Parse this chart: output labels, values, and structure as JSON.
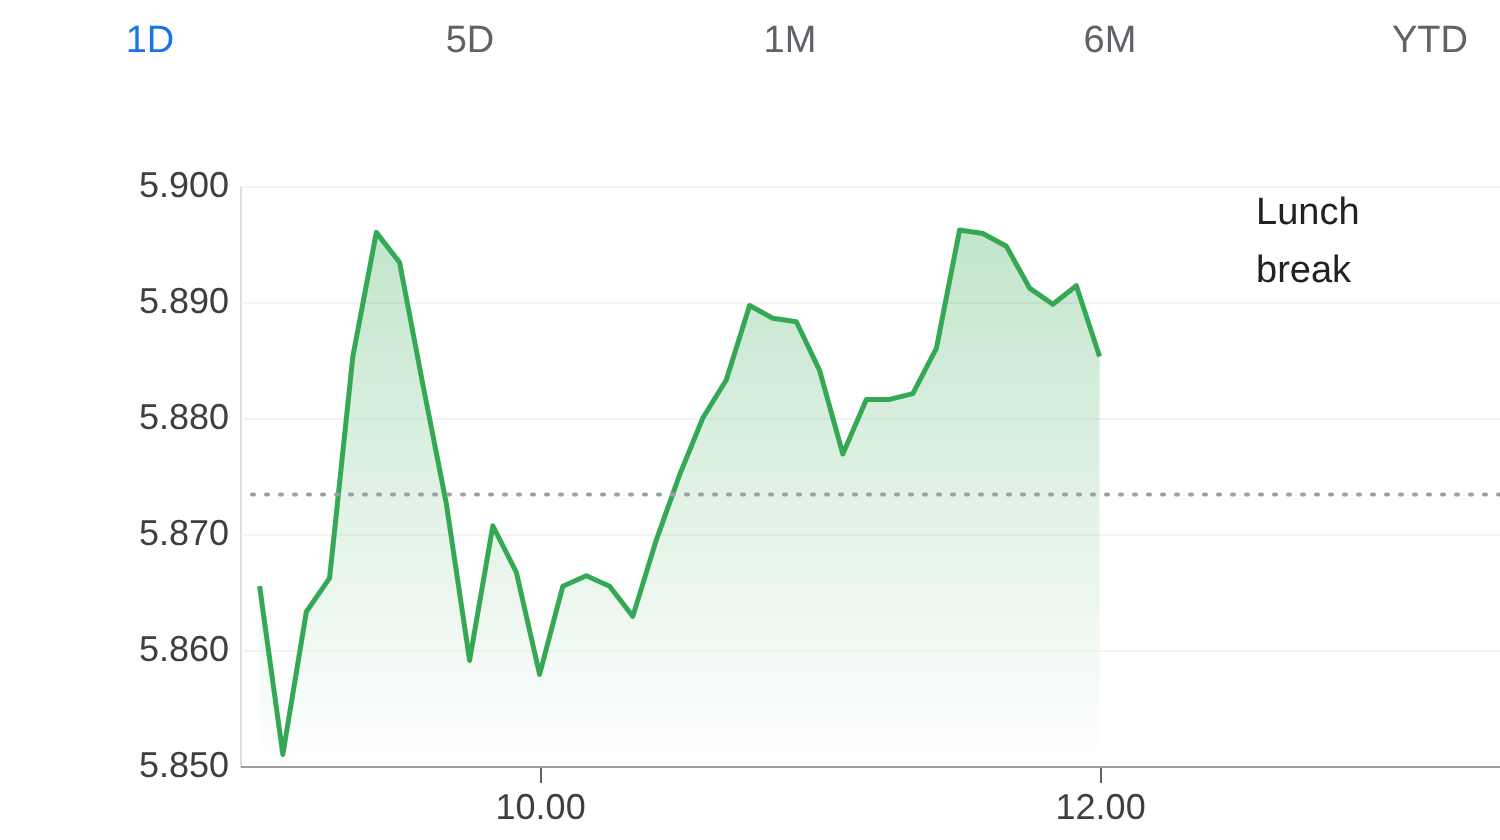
{
  "chart_data": {
    "type": "area",
    "x": [
      9.0,
      9.083,
      9.167,
      9.25,
      9.333,
      9.417,
      9.5,
      9.583,
      9.667,
      9.75,
      9.833,
      9.917,
      10.0,
      10.083,
      10.167,
      10.25,
      10.333,
      10.417,
      10.5,
      10.583,
      10.667,
      10.75,
      10.833,
      10.917,
      11.0,
      11.083,
      11.167,
      11.25,
      11.333,
      11.417,
      11.5,
      11.583,
      11.667,
      11.75,
      11.833,
      11.917,
      12.0
    ],
    "series": [
      {
        "color": "#34a853",
        "values": [
          5.8655,
          5.851,
          5.8633,
          5.8662,
          5.8853,
          5.896,
          5.8934,
          5.8829,
          5.8726,
          5.8591,
          5.8707,
          5.8667,
          5.8579,
          5.8655,
          5.8664,
          5.8655,
          5.8629,
          5.8695,
          5.8751,
          5.88,
          5.8833,
          5.8897,
          5.8886,
          5.8883,
          5.8841,
          5.8769,
          5.8816,
          5.8816,
          5.8821,
          5.886,
          5.8962,
          5.8959,
          5.8948,
          5.8912,
          5.8898,
          5.8914,
          5.8853
        ]
      }
    ],
    "xlim": [
      8.93,
      13.43
    ],
    "xticks": [
      {
        "value": 10,
        "label": "10.00"
      },
      {
        "value": 12,
        "label": "12.00"
      }
    ],
    "ylim": [
      5.85,
      5.9
    ],
    "yticks": [
      {
        "value": 5.85,
        "label": "5.850"
      },
      {
        "value": 5.86,
        "label": "5.860"
      },
      {
        "value": 5.87,
        "label": "5.870"
      },
      {
        "value": 5.88,
        "label": "5.880"
      },
      {
        "value": 5.89,
        "label": "5.890"
      },
      {
        "value": 5.9,
        "label": "5.900"
      }
    ],
    "ref_lines": [
      {
        "axis": "y",
        "value": 5.8734,
        "color": "#9aa0a6",
        "line_style": "dotted"
      }
    ],
    "annotations": [
      "1D",
      "5D",
      "1M",
      "6M",
      "YTD",
      "Lunch break"
    ],
    "grid": "y",
    "line_style": "solid"
  }
}
